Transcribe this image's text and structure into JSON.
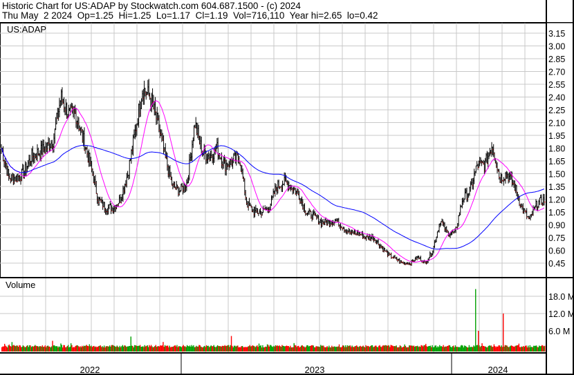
{
  "header": {
    "title": "Historic Chart for US:ADAP by Stockwatch.com 604.687.1500 - (c) 2024",
    "quote": "Thu May  2 2024  Op=1.25  Hi=1.25  Lo=1.17  Cl=1.19  Vol=716,110  Year hi=2.65  lo=0.42"
  },
  "chart_data": [
    {
      "type": "line",
      "title": "US:ADAP",
      "ylim": [
        0.45,
        3.15
      ],
      "yticks": [
        "3.15",
        "3.00",
        "2.85",
        "2.70",
        "2.55",
        "2.40",
        "2.25",
        "2.10",
        "1.95",
        "1.80",
        "1.65",
        "1.50",
        "1.35",
        "1.20",
        "1.05",
        "0.90",
        "0.75",
        "0.60",
        "0.45"
      ],
      "xticks": [
        "2022",
        "2023",
        "2024"
      ],
      "grid": true,
      "colors": {
        "up": "#000000",
        "down": "#ff0000",
        "ma_short": "#ff00ff",
        "ma_long": "#0000ff"
      },
      "close_path": [
        1.8,
        1.45,
        1.45,
        1.5,
        1.7,
        1.75,
        1.8,
        1.9,
        2.4,
        2.2,
        2.2,
        1.9,
        1.6,
        1.2,
        1.1,
        1.1,
        1.2,
        1.5,
        2.0,
        2.5,
        2.4,
        2.1,
        1.7,
        1.35,
        1.3,
        1.4,
        2.1,
        1.75,
        1.7,
        1.8,
        1.6,
        1.65,
        1.7,
        1.15,
        1.05,
        1.05,
        1.1,
        1.35,
        1.4,
        1.35,
        1.25,
        1.05,
        1.0,
        0.93,
        0.93,
        0.95,
        0.87,
        0.8,
        0.8,
        0.75,
        0.75,
        0.65,
        0.55,
        0.5,
        0.45,
        0.45,
        0.52,
        0.45,
        0.6,
        0.95,
        0.8,
        0.8,
        1.2,
        1.3,
        1.6,
        1.6,
        1.85,
        1.45,
        1.5,
        1.35,
        1.1,
        0.95,
        1.15,
        1.19
      ]
    },
    {
      "type": "bar",
      "title": "Volume",
      "ylim": [
        0,
        21
      ],
      "yticks": [
        "18.0 M",
        "12.0 M",
        "6.0 M"
      ],
      "colors": {
        "up": "#00a000",
        "down": "#ff0000"
      },
      "spikes_millions": [
        {
          "at": 0.238,
          "v": 4.0
        },
        {
          "at": 0.423,
          "v": 4.2
        },
        {
          "at": 0.873,
          "v": 20.5
        },
        {
          "at": 0.924,
          "v": 12.0
        },
        {
          "at": 0.877,
          "v": 6.0
        }
      ]
    }
  ]
}
